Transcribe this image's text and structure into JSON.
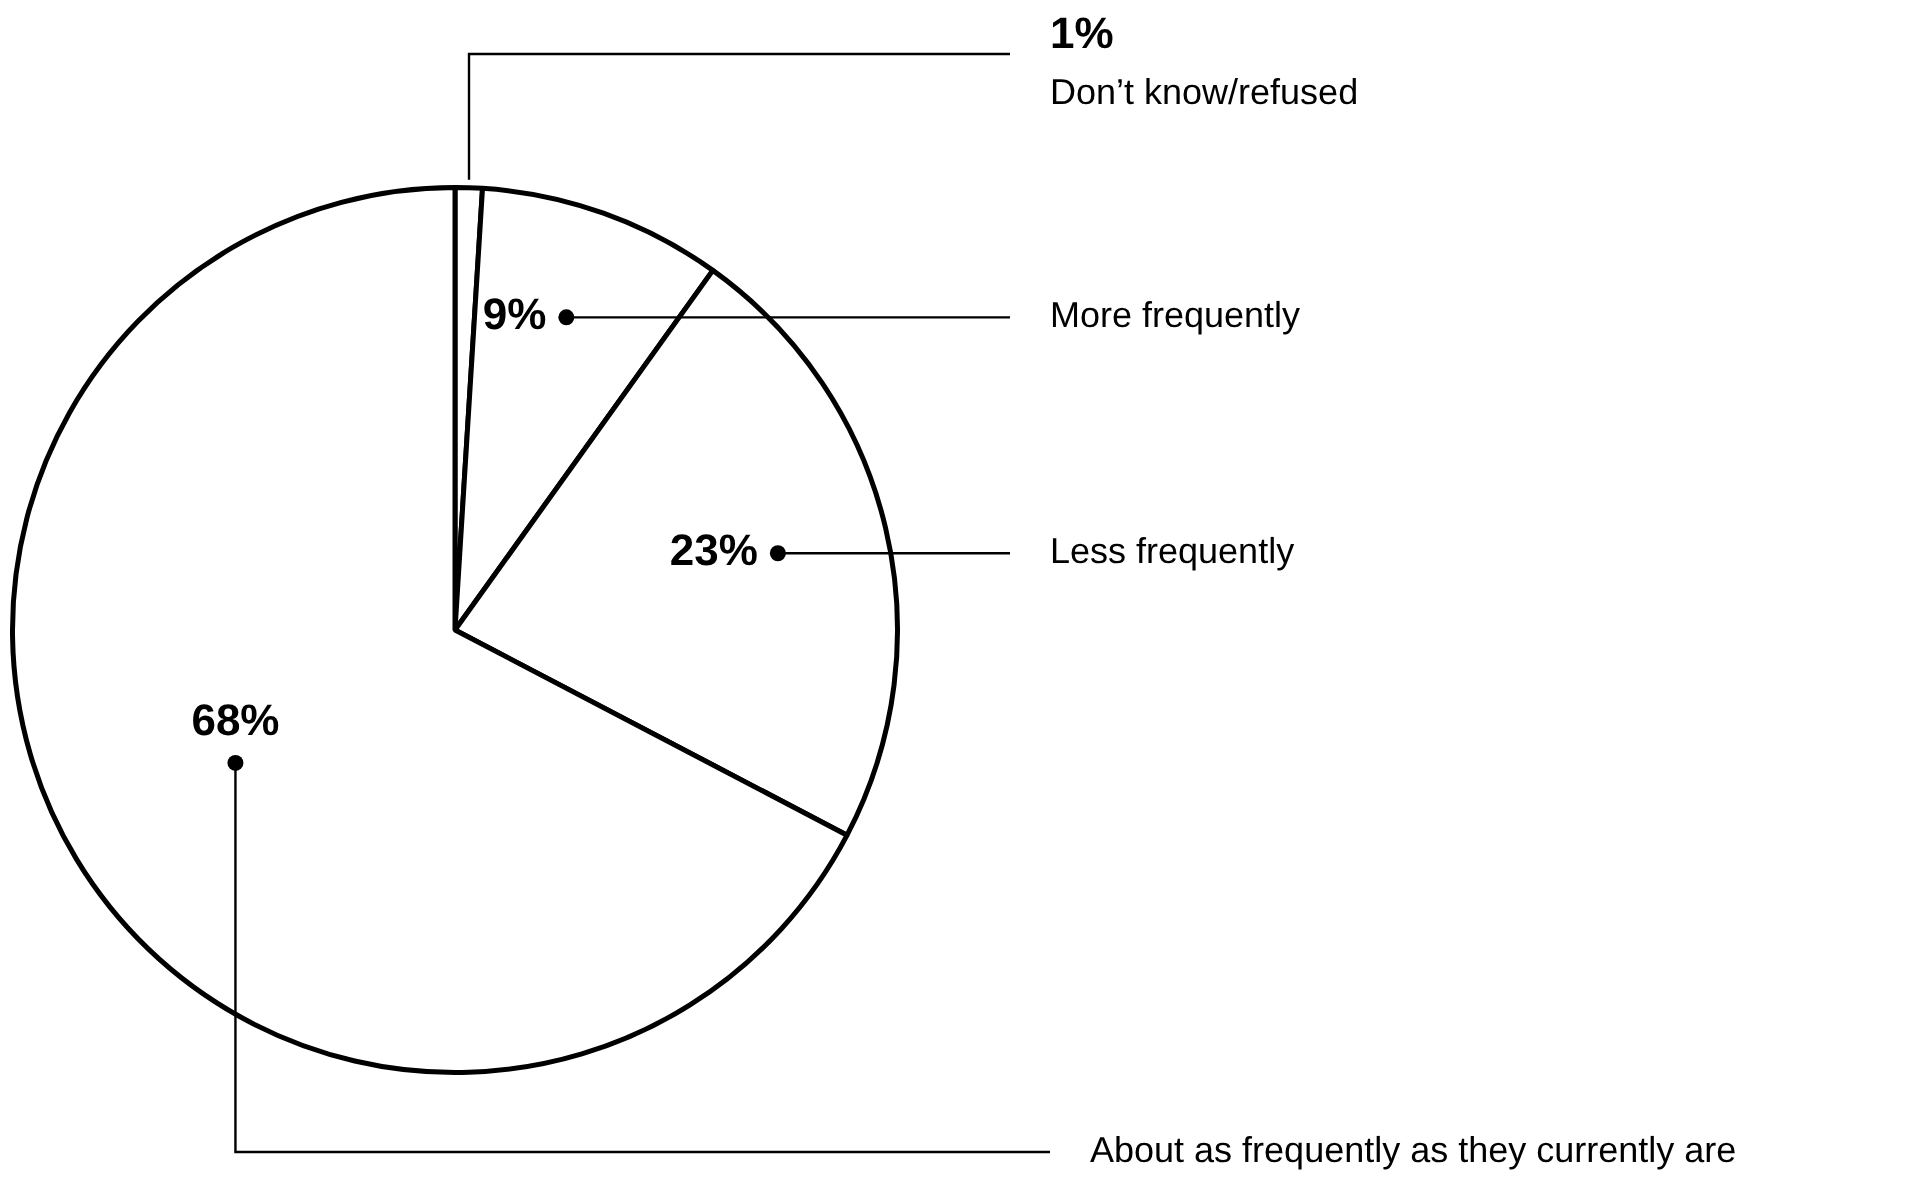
{
  "chart_data": {
    "type": "pie",
    "categories": [
      "Don’t know/refused",
      "More frequently",
      "Less frequently",
      "About as frequently as they currently are"
    ],
    "values": [
      1,
      9,
      23,
      68
    ],
    "colors": [
      "#ffffff",
      "#ffffff",
      "#ffffff",
      "#ffffff"
    ],
    "value_labels": [
      "1%",
      "9%",
      "23%",
      "68%"
    ],
    "legend": false
  }
}
